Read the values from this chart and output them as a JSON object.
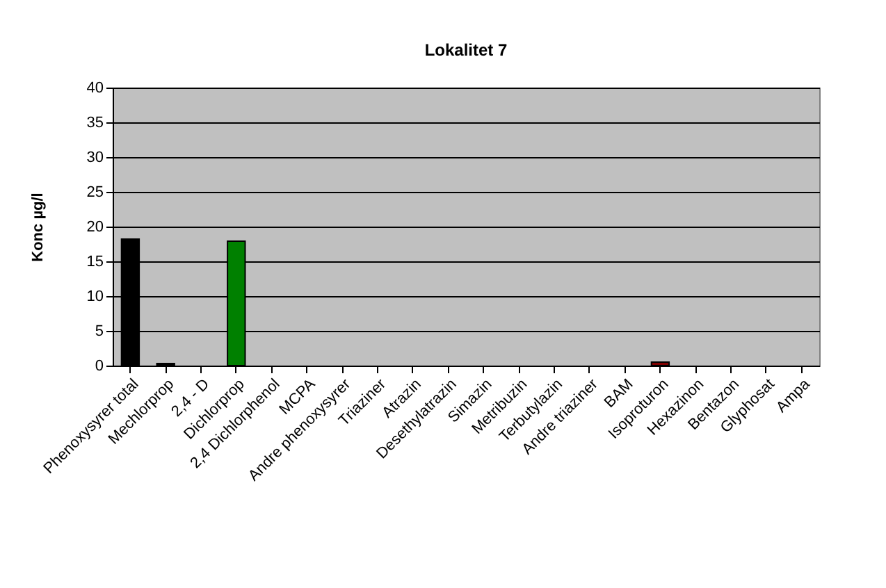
{
  "chart_data": {
    "type": "bar",
    "title": "Lokalitet 7",
    "ylabel": "Konc µg/l",
    "categories": [
      "Phenoxysyrer total",
      "Mechlorprop",
      "2,4 - D",
      "Dichlorprop",
      "2,4 Dichlorphenol",
      "MCPA",
      "Andre phenoxysyrer",
      "Triaziner",
      "Atrazin",
      "Desethylatrazin",
      "Simazin",
      "Metribuzin",
      "Terbutylazin",
      "Andre triaziner",
      "BAM",
      "Isoproturon",
      "Hexazinon",
      "Bentazon",
      "Glyphosat",
      "Ampa"
    ],
    "values": [
      18.2,
      0.3,
      0,
      17.9,
      0,
      0,
      0,
      0,
      0,
      0,
      0,
      0,
      0,
      0,
      0,
      0.5,
      0,
      0,
      0,
      0
    ],
    "colors": [
      "#000000",
      "#000000",
      "#000000",
      "#008000",
      "#000000",
      "#000000",
      "#000000",
      "#000000",
      "#000000",
      "#000000",
      "#000000",
      "#000000",
      "#000000",
      "#000000",
      "#000000",
      "#800000",
      "#000000",
      "#000000",
      "#000000",
      "#000000"
    ],
    "ylim": [
      0,
      40
    ],
    "yticks": [
      0,
      5,
      10,
      15,
      20,
      25,
      30,
      35,
      40
    ],
    "grid": "y"
  }
}
